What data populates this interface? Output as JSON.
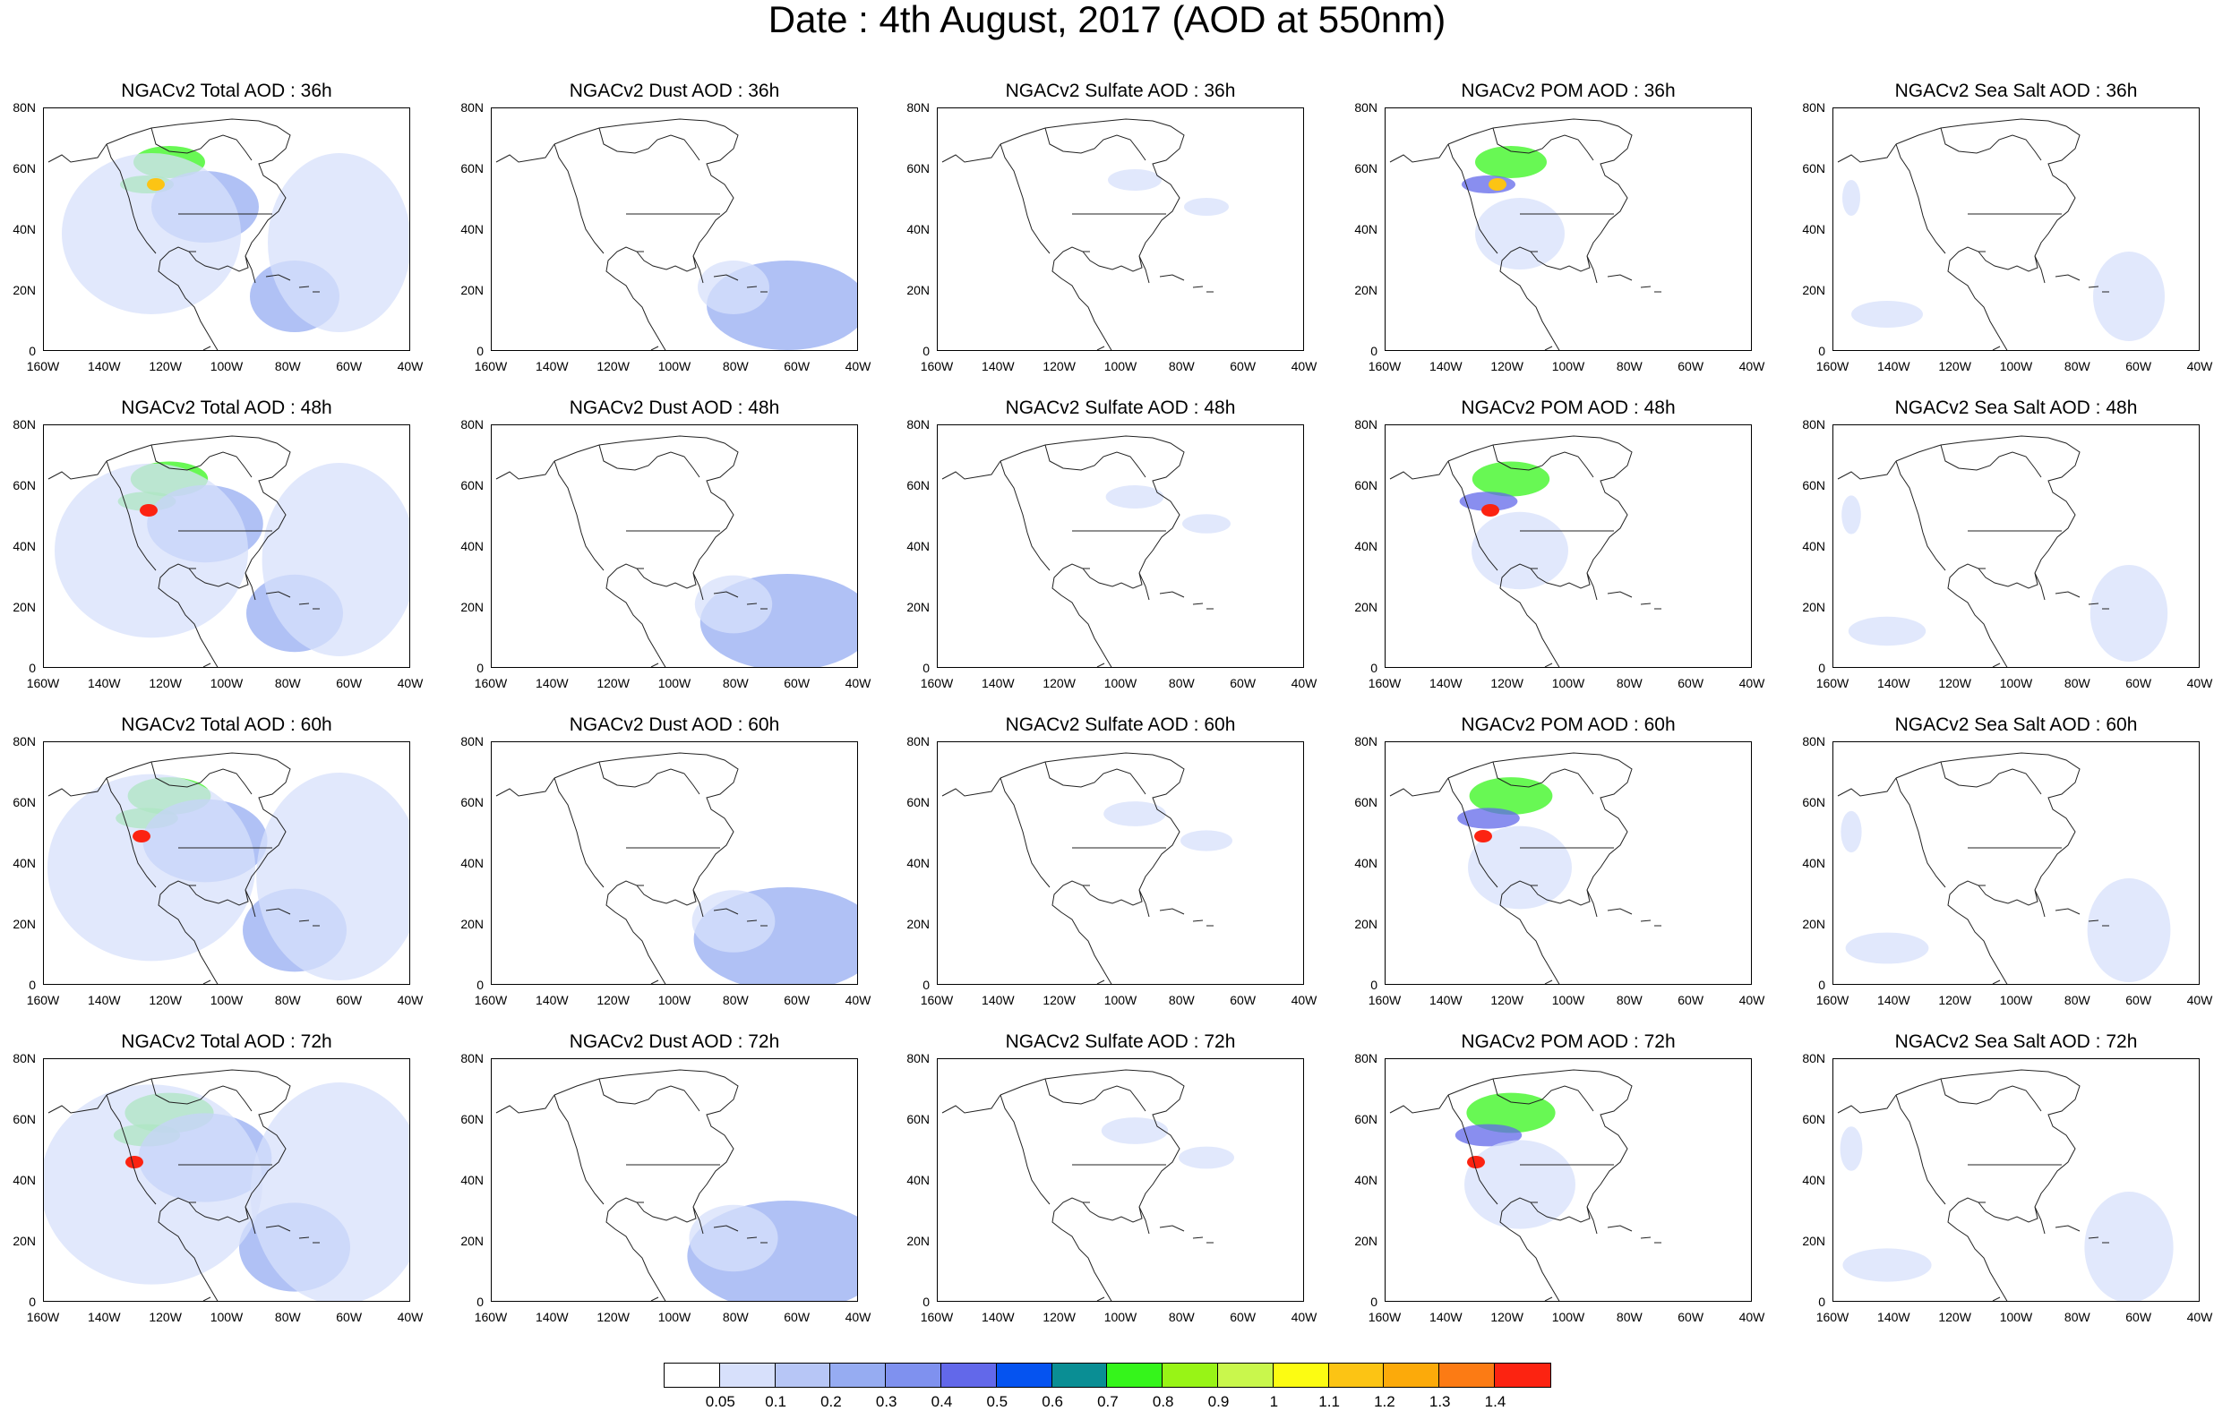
{
  "title": "Date : 4th August, 2017 (AOD at 550nm)",
  "panels": [
    [
      "NGACv2 Total AOD : 36h",
      "NGACv2 Dust AOD : 36h",
      "NGACv2 Sulfate AOD : 36h",
      "NGACv2 POM AOD : 36h",
      "NGACv2 Sea Salt AOD : 36h"
    ],
    [
      "NGACv2 Total AOD : 48h",
      "NGACv2 Dust AOD : 48h",
      "NGACv2 Sulfate AOD : 48h",
      "NGACv2 POM AOD : 48h",
      "NGACv2 Sea Salt AOD : 48h"
    ],
    [
      "NGACv2 Total AOD : 60h",
      "NGACv2 Dust AOD : 60h",
      "NGACv2 Sulfate AOD : 60h",
      "NGACv2 POM AOD : 60h",
      "NGACv2 Sea Salt AOD : 60h"
    ],
    [
      "NGACv2 Total AOD : 72h",
      "NGACv2 Dust AOD : 72h",
      "NGACv2 Sulfate AOD : 72h",
      "NGACv2 POM AOD : 72h",
      "NGACv2 Sea Salt  AOD : 72h"
    ]
  ],
  "axes": {
    "lat_labels": [
      "80N",
      "60N",
      "40N",
      "20N",
      "0"
    ],
    "lon_labels": [
      "160W",
      "140W",
      "120W",
      "100W",
      "80W",
      "60W",
      "40W"
    ]
  },
  "colorbar": {
    "colors": [
      "#ffffff",
      "#d7e0fb",
      "#b7c6f6",
      "#96acf2",
      "#7f91ef",
      "#6268ea",
      "#0553f0",
      "#0a8e94",
      "#35f51b",
      "#98f416",
      "#c9f74c",
      "#fcfc12",
      "#fcc414",
      "#fcaa0a",
      "#fc7b14",
      "#fc2311"
    ],
    "labels": [
      "0.05",
      "0.1",
      "0.2",
      "0.3",
      "0.4",
      "0.5",
      "0.6",
      "0.7",
      "0.8",
      "0.9",
      "1",
      "1.1",
      "1.2",
      "1.3",
      "1.4"
    ]
  }
}
